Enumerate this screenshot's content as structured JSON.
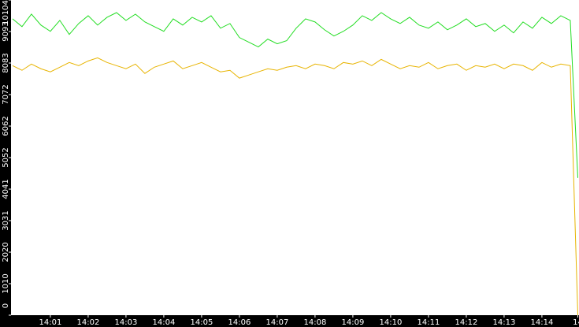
{
  "chart_data": {
    "type": "line",
    "x": [
      0,
      0.25,
      0.5,
      0.75,
      1,
      1.25,
      1.5,
      1.75,
      2,
      2.25,
      2.5,
      2.75,
      3,
      3.25,
      3.5,
      3.75,
      4,
      4.25,
      4.5,
      4.75,
      5,
      5.25,
      5.5,
      5.75,
      6,
      6.25,
      6.5,
      6.75,
      7,
      7.25,
      7.5,
      7.75,
      8,
      8.25,
      8.5,
      8.75,
      9,
      9.25,
      9.5,
      9.75,
      10,
      10.25,
      10.5,
      10.75,
      11,
      11.25,
      11.5,
      11.75,
      12,
      12.25,
      12.5,
      12.75,
      13,
      13.25,
      13.5,
      13.75,
      14,
      14.25,
      14.5,
      14.75,
      14.95
    ],
    "series": [
      {
        "color": "#22dd22",
        "values": [
          9500,
          9250,
          9650,
          9300,
          9100,
          9450,
          9000,
          9350,
          9600,
          9300,
          9550,
          9700,
          9450,
          9650,
          9400,
          9250,
          9100,
          9500,
          9300,
          9550,
          9400,
          9600,
          9200,
          9350,
          8900,
          8750,
          8600,
          8850,
          8700,
          8800,
          9200,
          9500,
          9400,
          9150,
          8950,
          9100,
          9300,
          9600,
          9450,
          9700,
          9500,
          9350,
          9550,
          9300,
          9200,
          9400,
          9150,
          9300,
          9500,
          9250,
          9350,
          9100,
          9300,
          9050,
          9400,
          9200,
          9550,
          9350,
          9600,
          9450,
          4400
        ]
      },
      {
        "color": "#e8b400",
        "values": [
          8000,
          7850,
          8050,
          7900,
          7800,
          7950,
          8100,
          8000,
          8150,
          8250,
          8100,
          8000,
          7900,
          8050,
          7750,
          7950,
          8050,
          8150,
          7900,
          8000,
          8100,
          7950,
          7800,
          7850,
          7600,
          7700,
          7800,
          7900,
          7850,
          7950,
          8000,
          7900,
          8050,
          8000,
          7900,
          8100,
          8050,
          8150,
          8000,
          8200,
          8050,
          7900,
          8000,
          7950,
          8100,
          7900,
          8000,
          8050,
          7850,
          8000,
          7950,
          8050,
          7900,
          8050,
          8000,
          7850,
          8100,
          7950,
          8050,
          8000,
          0
        ]
      }
    ],
    "xlim": [
      -0.04,
      14.96
    ],
    "xticks": [
      {
        "value": 1,
        "label": "14:01"
      },
      {
        "value": 2,
        "label": "14:02"
      },
      {
        "value": 3,
        "label": "14:03"
      },
      {
        "value": 4,
        "label": "14:04"
      },
      {
        "value": 5,
        "label": "14:05"
      },
      {
        "value": 6,
        "label": "14:06"
      },
      {
        "value": 7,
        "label": "14:07"
      },
      {
        "value": 8,
        "label": "14:08"
      },
      {
        "value": 9,
        "label": "14:09"
      },
      {
        "value": 10,
        "label": "14:10"
      },
      {
        "value": 11,
        "label": "14:11"
      },
      {
        "value": 12,
        "label": "14:12"
      },
      {
        "value": 13,
        "label": "14:13"
      },
      {
        "value": 14,
        "label": "14:14"
      },
      {
        "value": 14.95,
        "label": "14"
      }
    ],
    "ylim": [
      0,
      10104
    ],
    "yticks": [
      0,
      1010,
      2020,
      3031,
      4041,
      5052,
      6062,
      7072,
      8083,
      9093,
      10104
    ]
  }
}
